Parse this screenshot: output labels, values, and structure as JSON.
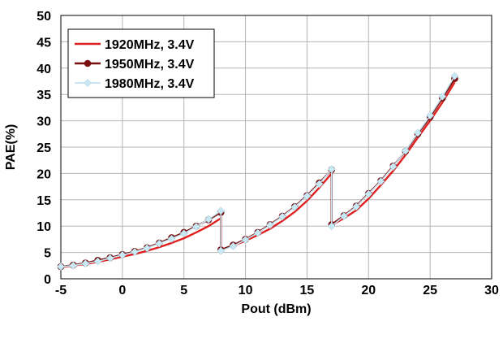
{
  "chart_data": {
    "type": "line",
    "title": "",
    "xlabel": "Pout (dBm)",
    "ylabel": "PAE(%)",
    "xlim": [
      -5,
      30
    ],
    "ylim": [
      0,
      50
    ],
    "x_ticks": [
      -5,
      0,
      5,
      10,
      15,
      20,
      25,
      30
    ],
    "y_ticks": [
      0,
      5,
      10,
      15,
      20,
      25,
      30,
      35,
      40,
      45,
      50
    ],
    "grid": true,
    "legend_position": "top-left",
    "series": [
      {
        "name": "1920MHz, 3.4V",
        "color": "#e02020",
        "marker": "none",
        "segments": [
          {
            "x": [
              -5,
              -4,
              -3,
              -2,
              -1,
              0,
              1,
              2,
              3,
              4,
              5,
              6,
              7,
              8
            ],
            "y": [
              2.2,
              2.5,
              2.8,
              3.2,
              3.7,
              4.2,
              4.7,
              5.3,
              6.0,
              6.8,
              7.7,
              8.8,
              10.0,
              11.5
            ]
          },
          {
            "x": [
              8,
              9,
              10,
              11,
              12,
              13,
              14,
              15,
              16,
              17
            ],
            "y": [
              5.4,
              6.3,
              7.2,
              8.3,
              9.5,
              11.0,
              12.7,
              14.8,
              17.3,
              20.0
            ]
          },
          {
            "x": [
              17,
              18,
              19,
              20,
              21,
              22,
              23,
              24,
              25,
              26,
              27
            ],
            "y": [
              10.2,
              11.5,
              13.0,
              15.2,
              17.8,
              20.5,
              23.5,
              26.8,
              30.0,
              33.5,
              37.3
            ]
          }
        ]
      },
      {
        "name": "1950MHz, 3.4V",
        "color": "#7a1010",
        "marker": "circle",
        "segments": [
          {
            "x": [
              -5,
              -4,
              -3,
              -2,
              -1,
              0,
              1,
              2,
              3,
              4,
              5,
              6,
              7,
              8
            ],
            "y": [
              2.3,
              2.6,
              3.0,
              3.5,
              4.0,
              4.6,
              5.2,
              5.9,
              6.8,
              7.8,
              8.8,
              10.0,
              11.2,
              12.6
            ]
          },
          {
            "x": [
              8,
              9,
              10,
              11,
              12,
              13,
              14,
              15,
              16,
              17
            ],
            "y": [
              5.5,
              6.4,
              7.5,
              8.8,
              10.3,
              11.9,
              13.7,
              15.8,
              18.2,
              20.7
            ]
          },
          {
            "x": [
              17,
              18,
              19,
              20,
              21,
              22,
              23,
              24,
              25,
              26,
              27
            ],
            "y": [
              10.3,
              12.0,
              13.8,
              16.2,
              18.6,
              21.4,
              24.2,
              27.5,
              30.7,
              34.3,
              38.0
            ]
          }
        ]
      },
      {
        "name": "1980MHz, 3.4V",
        "color": "#c8e8f4",
        "marker": "diamond",
        "segments": [
          {
            "x": [
              -5,
              -4,
              -3,
              -2,
              -1,
              0,
              1,
              2,
              3,
              4,
              5,
              6,
              7,
              8
            ],
            "y": [
              2.3,
              2.5,
              2.9,
              3.3,
              3.9,
              4.5,
              5.1,
              5.8,
              6.7,
              7.6,
              8.6,
              9.9,
              11.3,
              12.9
            ]
          },
          {
            "x": [
              8,
              9,
              10,
              11,
              12,
              13,
              14,
              15,
              16,
              17
            ],
            "y": [
              5.3,
              6.2,
              7.4,
              8.7,
              10.2,
              11.8,
              13.6,
              15.7,
              18.0,
              20.8
            ]
          },
          {
            "x": [
              17,
              18,
              19,
              20,
              21,
              22,
              23,
              24,
              25,
              26,
              27
            ],
            "y": [
              10.0,
              11.9,
              13.7,
              16.1,
              18.5,
              21.3,
              24.3,
              27.7,
              31.0,
              34.6,
              38.5
            ]
          }
        ]
      }
    ]
  }
}
